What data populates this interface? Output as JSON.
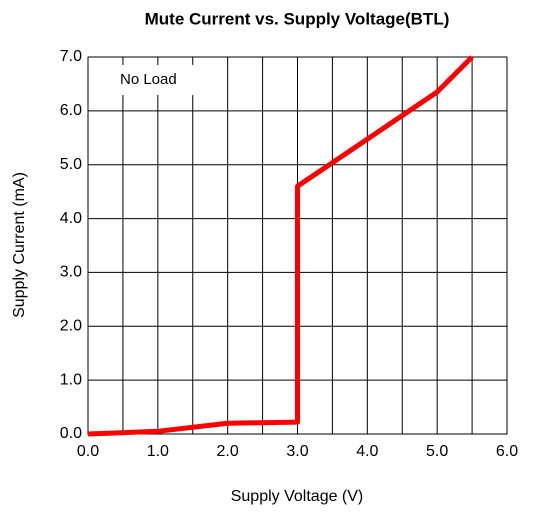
{
  "chart_data": {
    "type": "line",
    "title": "Mute Current vs. Supply Voltage(BTL)",
    "xlabel": "Supply Voltage (V)",
    "ylabel": "Supply Current (mA)",
    "annotation": "No Load",
    "series": [
      {
        "color": "#ff0000",
        "x": [
          0,
          1,
          2,
          3,
          3,
          5,
          5.5
        ],
        "values": [
          0,
          0.05,
          0.2,
          0.22,
          4.6,
          6.35,
          7
        ]
      }
    ],
    "xlim": [
      0,
      6
    ],
    "ylim": [
      0,
      7
    ],
    "xticks": [
      {
        "value": 0,
        "label": "0.0"
      },
      {
        "value": 1,
        "label": "1.0"
      },
      {
        "value": 2,
        "label": "2.0"
      },
      {
        "value": 3,
        "label": "3.0"
      },
      {
        "value": 4,
        "label": "4.0"
      },
      {
        "value": 5,
        "label": "5.0"
      },
      {
        "value": 6,
        "label": "6.0"
      }
    ],
    "x_minor_ticks": [
      0.5,
      1.5,
      2.5,
      3.5,
      4.5,
      5.5
    ],
    "yticks": [
      {
        "value": 0,
        "label": "0.0"
      },
      {
        "value": 1,
        "label": "1.0"
      },
      {
        "value": 2,
        "label": "2.0"
      },
      {
        "value": 3,
        "label": "3.0"
      },
      {
        "value": 4,
        "label": "4.0"
      },
      {
        "value": 5,
        "label": "5.0"
      },
      {
        "value": 6,
        "label": "6.0"
      },
      {
        "value": 7,
        "label": "7.0"
      }
    ],
    "grid": true
  }
}
